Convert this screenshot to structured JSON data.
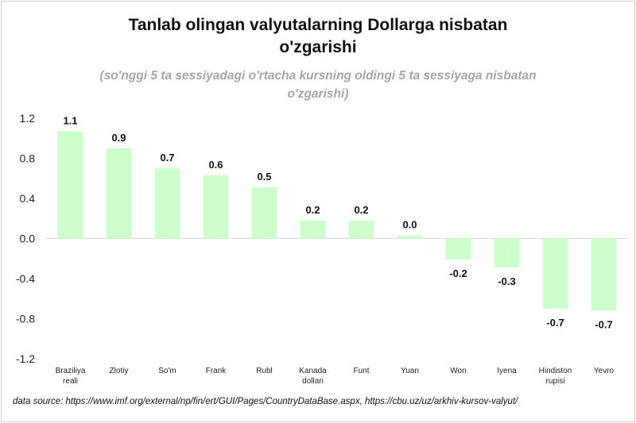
{
  "chart_data": {
    "type": "bar",
    "title_lines": [
      "Tanlab olingan valyutalarning  Dollarga nisbatan",
      "o'zgarishi"
    ],
    "subtitle_lines": [
      "(so'nggi 5 ta sessiyadagi o'rtacha kursning oldingi 5 ta sessiyaga nisbatan",
      "o'zgarishi)"
    ],
    "categories": [
      [
        "Braziliya",
        "reali"
      ],
      [
        "Zlotiy"
      ],
      [
        "So'm"
      ],
      [
        "Frank"
      ],
      [
        "Rubl"
      ],
      [
        "Kanada",
        "dollari"
      ],
      [
        "Funt"
      ],
      [
        "Yuan"
      ],
      [
        "Won"
      ],
      [
        "Iyena"
      ],
      [
        "Hindiston",
        "rupisi"
      ],
      [
        "Yevro"
      ]
    ],
    "values": [
      1.07,
      0.9,
      0.7,
      0.63,
      0.51,
      0.18,
      0.18,
      0.03,
      -0.21,
      -0.29,
      -0.7,
      -0.72
    ],
    "data_labels": [
      "1.1",
      "0.9",
      "0.7",
      "0.6",
      "0.5",
      "0.2",
      "0.2",
      "0.0",
      "-0.2",
      "-0.3",
      "-0.7",
      "-0.7"
    ],
    "ylim": [
      -1.2,
      1.2
    ],
    "yticks": [
      1.2,
      0.8,
      0.4,
      0.0,
      -0.4,
      -0.8,
      -1.2
    ],
    "ytick_labels": [
      "1.2",
      "0.8",
      "0.4",
      "0.0",
      "-0.4",
      "-0.8",
      "-1.2"
    ],
    "bar_color": "#ccffcc",
    "axis_color": "#d9d9d9",
    "grid": false,
    "legend": "none"
  },
  "source_text": "data source: https://www.imf.org/external/np/fin/ert/GUI/Pages/CountryDataBase.aspx, https://cbu.uz/uz/arkhiv-kursov-valyut/"
}
